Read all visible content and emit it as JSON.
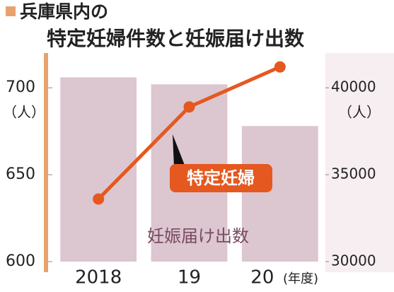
{
  "chart_data": {
    "type": "bar-line",
    "title": [
      "兵庫県内の",
      "特定妊婦件数と妊娠届け出数"
    ],
    "categories": [
      "2018",
      "19",
      "20"
    ],
    "xlabel": "(年度)",
    "ylabel": "（人）",
    "y2label": "（人）",
    "series": [
      {
        "name": "妊娠届け出数",
        "type": "bar",
        "axis": "y2",
        "color": "#dcc6d0",
        "values": [
          40600,
          40200,
          37800
        ]
      },
      {
        "name": "特定妊婦",
        "type": "line",
        "color": "#e5581f",
        "values": [
          636,
          689,
          712
        ]
      }
    ],
    "ylim": [
      600,
      720
    ],
    "yticks": [
      600,
      650,
      700
    ],
    "y2lim": [
      30000,
      42000
    ],
    "y2ticks": [
      30000,
      35000,
      40000
    ]
  }
}
